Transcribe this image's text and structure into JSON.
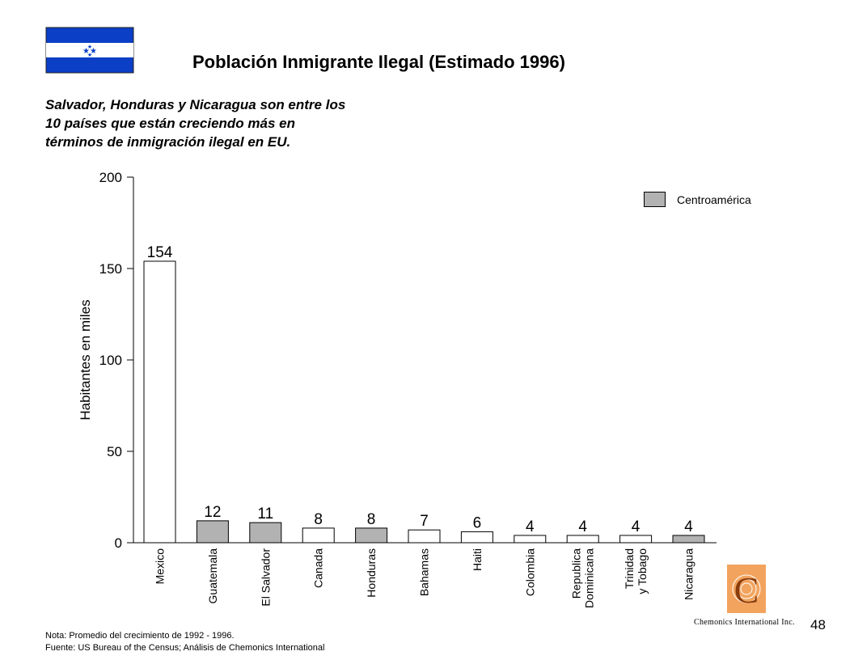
{
  "title": "Población Inmigrante Ilegal (Estimado 1996)",
  "subtitle_lines": [
    "Salvador, Honduras y Nicaragua son entre los",
    "10 países que están creciendo más en",
    "términos de inmigración ilegal en EU."
  ],
  "notes": {
    "nota": "Nota: Promedio del crecimiento de 1992 - 1996.",
    "fuente": "Fuente:  US Bureau  of the Census; Análisis de Chemonics International"
  },
  "page_number": "48",
  "company": "Chemonics International Inc.",
  "colors": {
    "highlight_bar": "#b2b2b2",
    "default_bar": "#ffffff",
    "flag_blue": "#0a3fc6",
    "logo_orange": "#f2a45f"
  },
  "chart_data": {
    "type": "bar",
    "ylabel": "Habitantes en miles",
    "ylim": [
      0,
      200
    ],
    "yticks": [
      0,
      50,
      100,
      150,
      200
    ],
    "grid": false,
    "categories": [
      [
        "Mexico"
      ],
      [
        "Guatemala"
      ],
      [
        "El Salvador"
      ],
      [
        "Canada"
      ],
      [
        "Honduras"
      ],
      [
        "Bahamas"
      ],
      [
        "Haiti"
      ],
      [
        "Colombia"
      ],
      [
        "Republica",
        "Dominicana"
      ],
      [
        "Trinidad",
        "y Tobago"
      ],
      [
        "Nicaragua"
      ]
    ],
    "values": [
      154,
      12,
      11,
      8,
      8,
      7,
      6,
      4,
      4,
      4,
      4
    ],
    "highlighted": [
      false,
      true,
      true,
      false,
      true,
      false,
      false,
      false,
      false,
      false,
      true
    ],
    "legend": {
      "label": "Centroamérica",
      "position": "top-right"
    }
  }
}
